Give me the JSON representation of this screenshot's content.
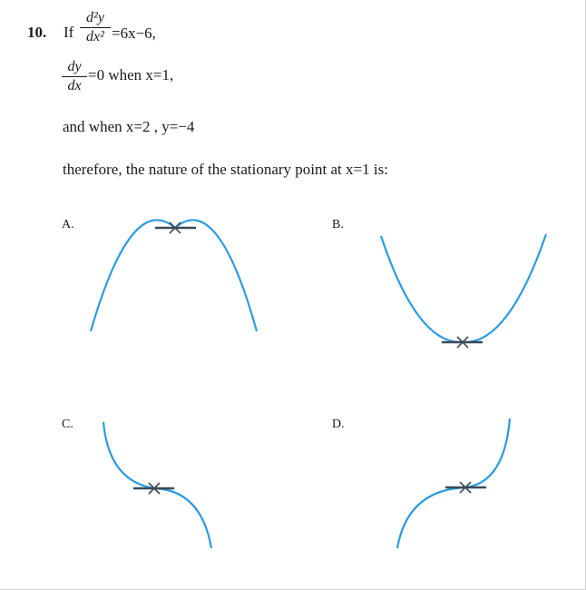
{
  "question": {
    "number": "10.",
    "if_word": "If",
    "d2y_num": "d²y",
    "d2y_den": "dx²",
    "rhs1": "=6x−6,",
    "dy_num": "dy",
    "dy_den": "dx",
    "rhs2": "=0 when x=1,",
    "line3": "and when x=2 , y=−4",
    "line4": "therefore, the nature of the stationary point at x=1 is:"
  },
  "options": {
    "a": "A.",
    "b": "B.",
    "c": "C.",
    "d": "D."
  },
  "colors": {
    "curve": "#2b9be0",
    "marker": "#3a4a5a"
  }
}
